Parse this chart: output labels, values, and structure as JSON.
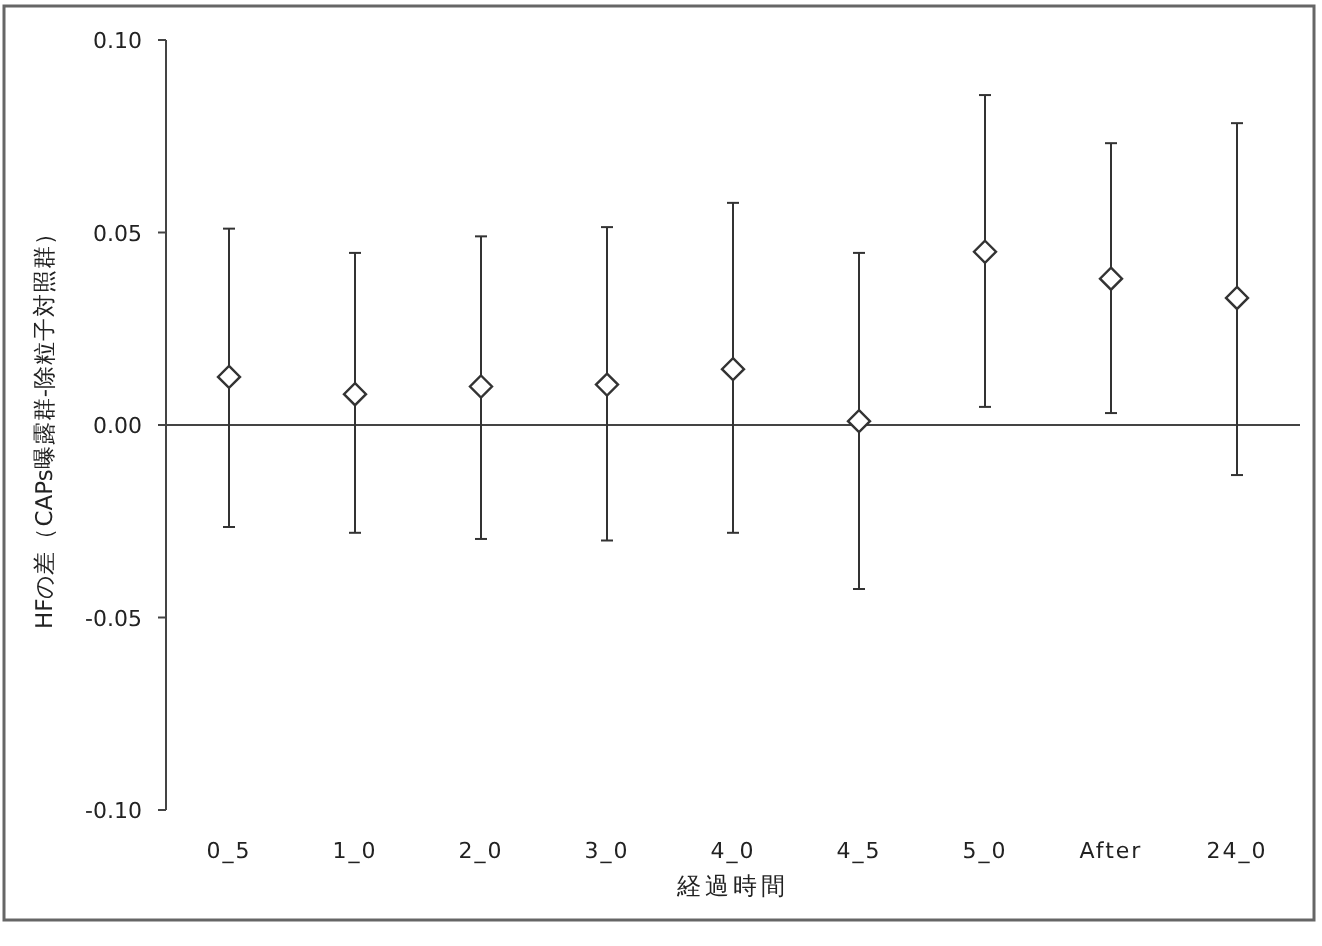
{
  "chart_data": {
    "type": "scatter",
    "xlabel": "経過時間",
    "ylabel": "HFの差（CAPs曝露群-除粒子対照群）",
    "categories": [
      "0_5",
      "1_0",
      "2_0",
      "3_0",
      "4_0",
      "4_5",
      "5_0",
      "After",
      "24_0"
    ],
    "values": [
      0.0125,
      0.008,
      0.01,
      0.0105,
      0.0145,
      0.001,
      0.045,
      0.038,
      0.033
    ],
    "errors": [
      [
        -0.0265,
        0.051
      ],
      [
        -0.028,
        0.0447
      ],
      [
        -0.0296,
        0.049
      ],
      [
        -0.03,
        0.0514
      ],
      [
        -0.028,
        0.0577
      ],
      [
        -0.0426,
        0.0447
      ],
      [
        0.0047,
        0.0857
      ],
      [
        0.0031,
        0.0732
      ],
      [
        -0.013,
        0.0784
      ]
    ],
    "color": "#333333",
    "marker": "diamond",
    "ylim": [
      -0.1,
      0.1
    ],
    "yticks": [
      {
        "value": -0.1,
        "label": "-0.10"
      },
      {
        "value": -0.05,
        "label": "-0.05"
      },
      {
        "value": 0,
        "label": "0.00"
      },
      {
        "value": 0.05,
        "label": "0.05"
      },
      {
        "value": 0.1,
        "label": "0.10"
      }
    ],
    "ref_lines": [
      {
        "axis": "y",
        "value": 0
      }
    ],
    "grid": false
  }
}
